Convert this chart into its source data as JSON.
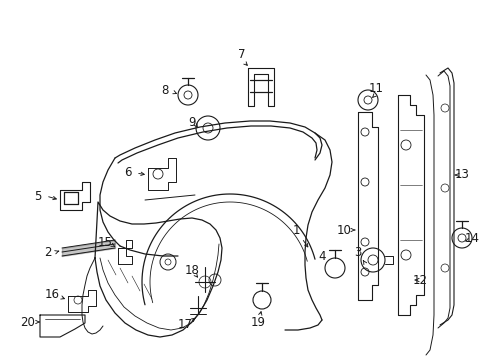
{
  "bg_color": "#ffffff",
  "line_color": "#1a1a1a",
  "figsize": [
    4.9,
    3.6
  ],
  "dpi": 100,
  "font_size": 8.5
}
